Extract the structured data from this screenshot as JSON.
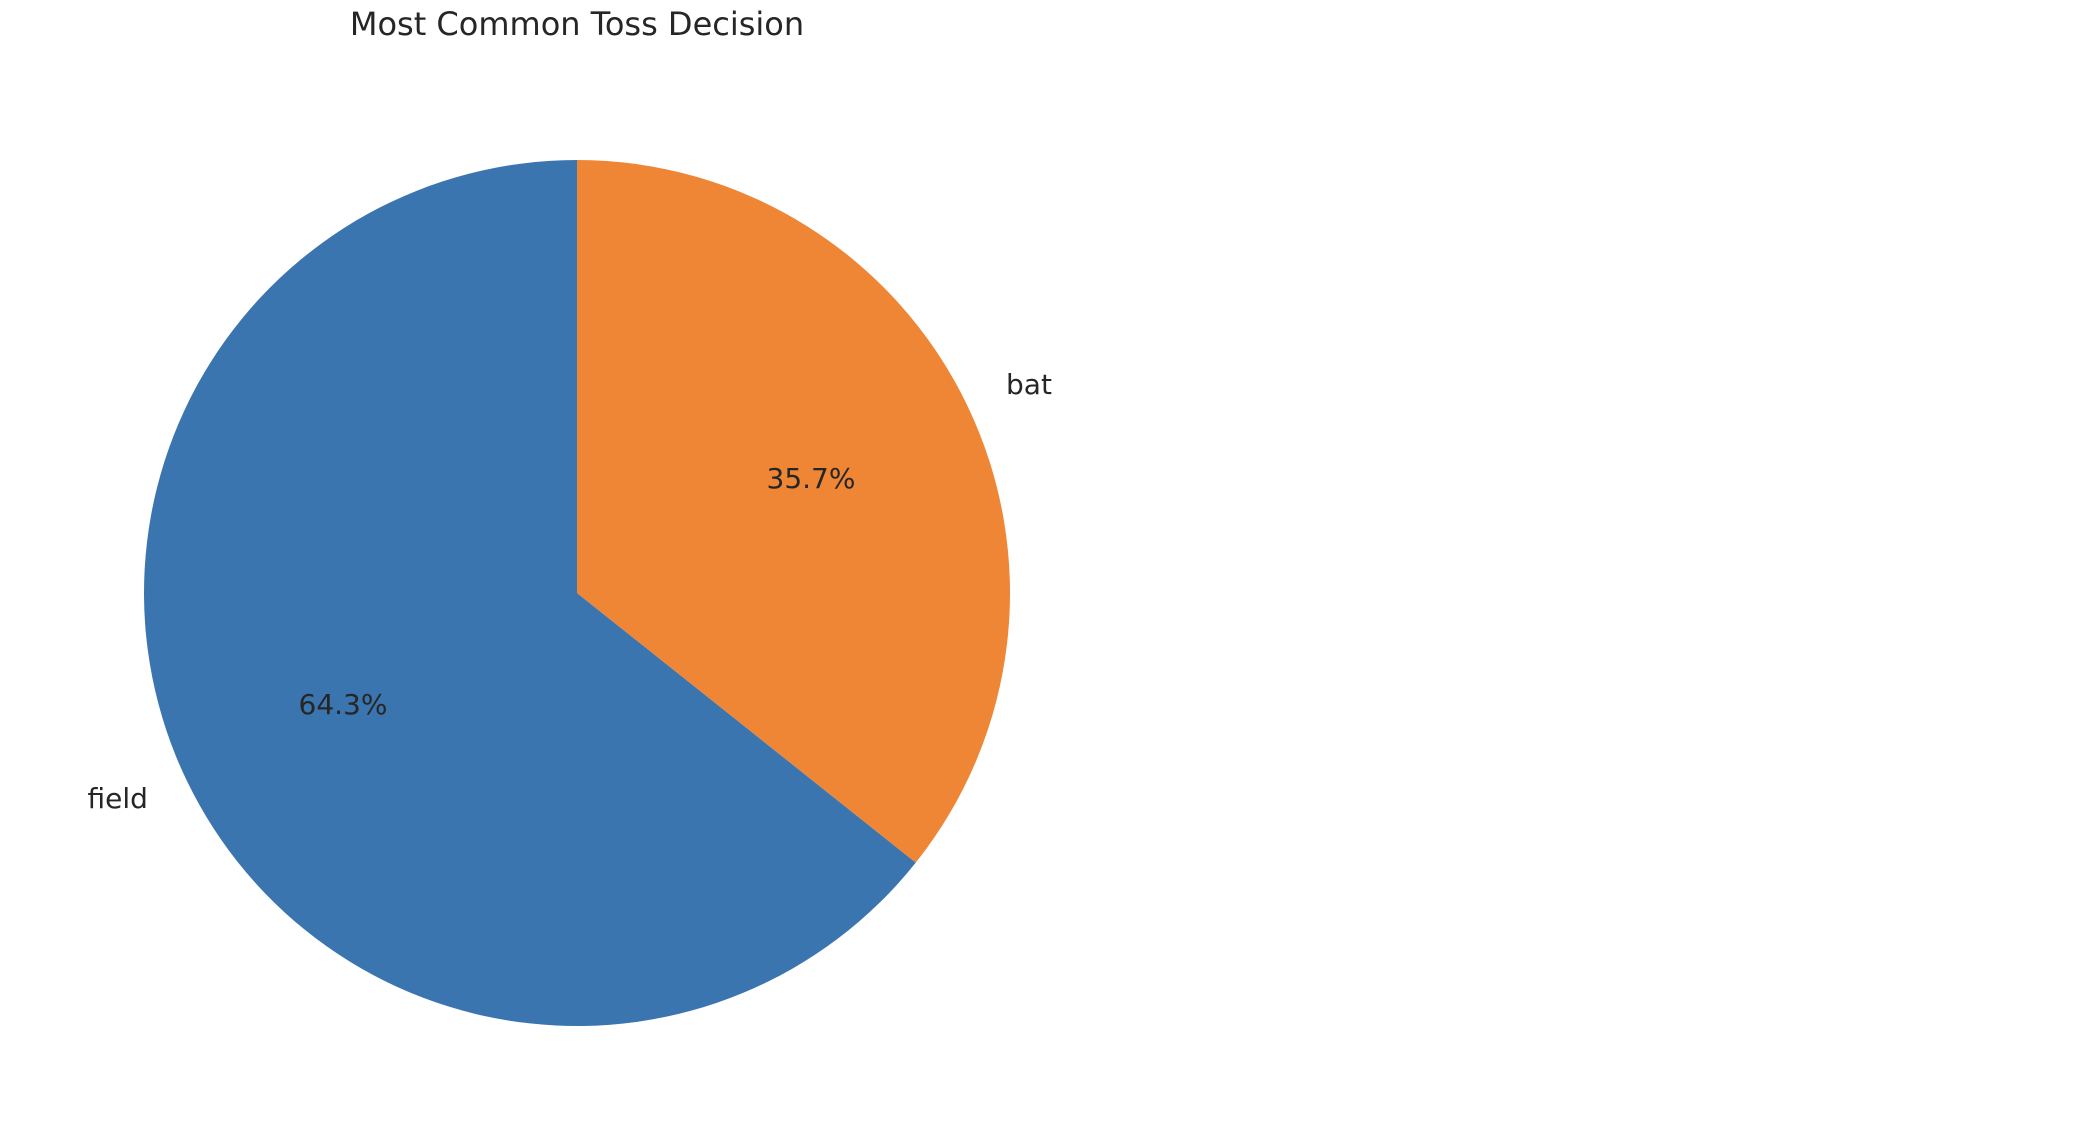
{
  "chart_data": {
    "type": "pie",
    "title": "Most Common Toss Decision",
    "categories": [
      "field",
      "bat"
    ],
    "values": [
      64.3,
      35.7
    ],
    "percent_labels": [
      "64.3%",
      "35.7%"
    ],
    "colors": [
      "#3b75af",
      "#ef8636"
    ],
    "start_angle_deg": 90,
    "direction": "counterclockwise"
  }
}
